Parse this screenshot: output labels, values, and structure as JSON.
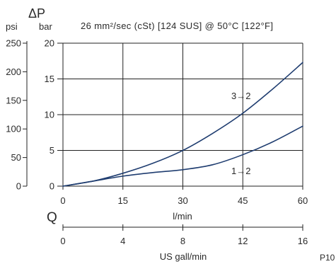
{
  "chart_data": {
    "type": "line",
    "title": "26 mm²/sec (cSt) [124 SUS] @ 50°C [122°F]",
    "ylabel": "ΔP",
    "yunit": "bar",
    "xlabel": "l/min",
    "x_symbol": "Q",
    "xlim": [
      0,
      60
    ],
    "ylim": [
      0,
      20
    ],
    "x_ticks": [
      0,
      15,
      30,
      45,
      60
    ],
    "y_ticks": [
      0,
      5,
      10,
      15,
      20
    ],
    "secondary_y": {
      "unit": "psi",
      "ylim": [
        0,
        250
      ],
      "ticks": [
        0,
        50,
        100,
        150,
        200,
        250
      ]
    },
    "secondary_x": {
      "label": "US gall/min",
      "xlim": [
        0,
        16
      ],
      "ticks": [
        0,
        4,
        8,
        12,
        16
      ]
    },
    "grid": true,
    "colors": {
      "series": "#1f3d70",
      "grid": "#222222",
      "text": "#2a2a2a"
    },
    "series": [
      {
        "name": "3→2",
        "x": [
          0,
          7.5,
          15,
          22.5,
          30,
          37.5,
          45,
          52.5,
          60
        ],
        "y": [
          0,
          0.7,
          1.8,
          3.2,
          5.0,
          7.4,
          10.2,
          13.6,
          17.3
        ]
      },
      {
        "name": "1→2",
        "x": [
          0,
          7.5,
          15,
          22.5,
          30,
          37.5,
          45,
          52.5,
          60
        ],
        "y": [
          0,
          0.7,
          1.4,
          1.9,
          2.3,
          3.0,
          4.4,
          6.2,
          8.4
        ]
      }
    ]
  },
  "footer": {
    "code": "P10"
  }
}
